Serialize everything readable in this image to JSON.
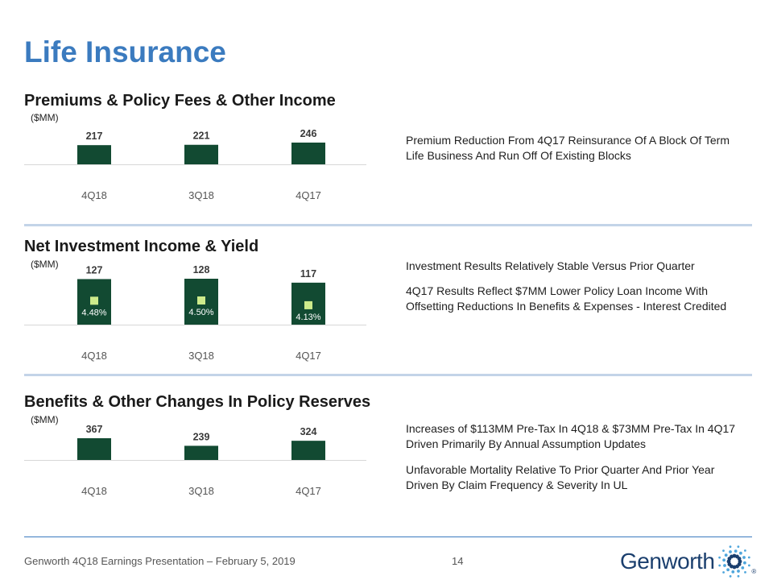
{
  "page": {
    "title": "Life Insurance",
    "footer": "Genworth 4Q18 Earnings Presentation – February 5, 2019",
    "page_number": "14",
    "logo_text": "Genworth",
    "logo_mark": "®"
  },
  "colors": {
    "title": "#3b7bbf",
    "bar": "#124a32",
    "marker": "#cdeb8b",
    "divider": "#c3d4e8"
  },
  "sections": [
    {
      "heading": "Premiums & Policy Fees & Other Income",
      "unit": "($MM)",
      "notes": [
        "Premium Reduction From 4Q17 Reinsurance Of A Block Of Term Life Business And Run Off Of Existing Blocks"
      ]
    },
    {
      "heading": "Net Investment Income & Yield",
      "unit": "($MM)",
      "notes": [
        "Investment Results Relatively Stable Versus Prior Quarter",
        "4Q17 Results Reflect $7MM Lower Policy Loan Income With Offsetting Reductions In Benefits & Expenses - Interest Credited"
      ]
    },
    {
      "heading": "Benefits & Other Changes In Policy Reserves",
      "unit": "($MM)",
      "notes": [
        "Increases of $113MM Pre-Tax In 4Q18 & $73MM Pre-Tax In 4Q17 Driven Primarily By Annual Assumption Updates",
        "Unfavorable Mortality Relative To Prior Quarter And Prior Year Driven By Claim Frequency & Severity In UL"
      ]
    }
  ],
  "chart_data": [
    {
      "type": "bar",
      "title": "Premiums & Policy Fees & Other Income",
      "ylabel": "($MM)",
      "categories": [
        "4Q18",
        "3Q18",
        "4Q17"
      ],
      "values": [
        217,
        221,
        246
      ]
    },
    {
      "type": "bar",
      "title": "Net Investment Income & Yield",
      "ylabel": "($MM)",
      "categories": [
        "4Q18",
        "3Q18",
        "4Q17"
      ],
      "values": [
        127,
        128,
        117
      ],
      "yield": {
        "name": "Yield",
        "values": [
          4.48,
          4.5,
          4.13
        ],
        "labels": [
          "4.48%",
          "4.50%",
          "4.13%"
        ]
      }
    },
    {
      "type": "bar",
      "title": "Benefits & Other Changes In Policy Reserves",
      "ylabel": "($MM)",
      "categories": [
        "4Q18",
        "3Q18",
        "4Q17"
      ],
      "values": [
        367,
        239,
        324
      ]
    }
  ]
}
